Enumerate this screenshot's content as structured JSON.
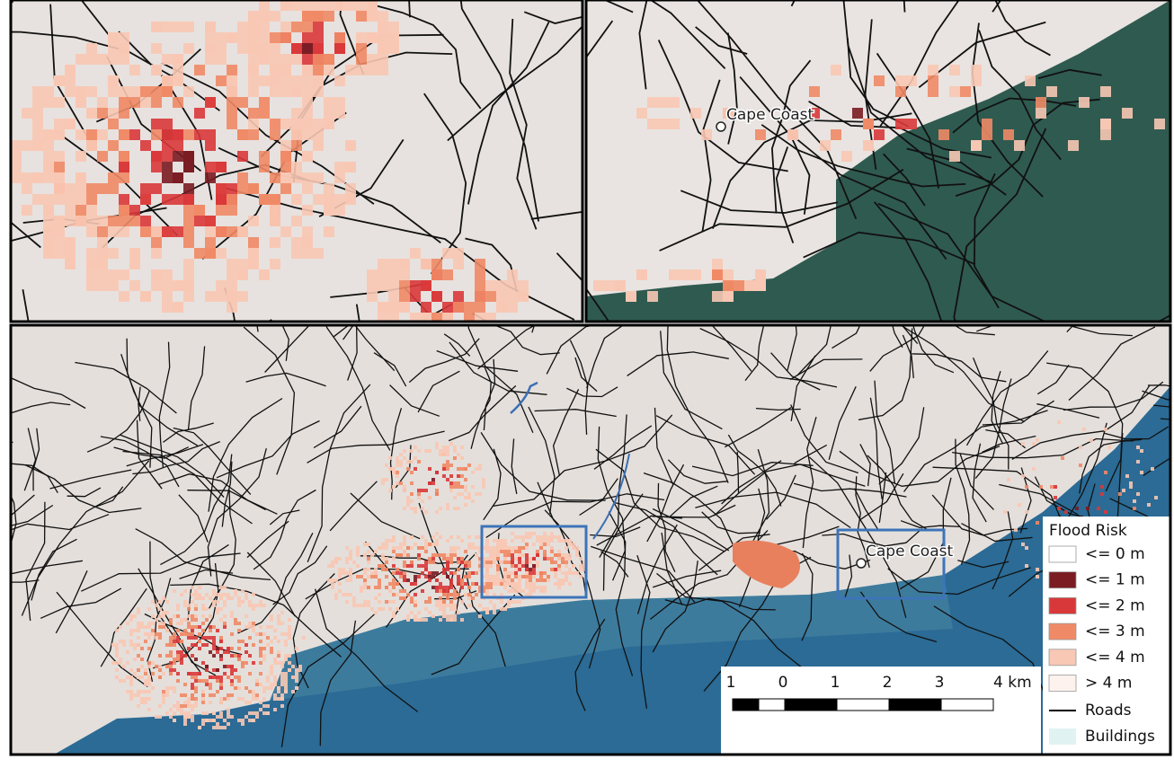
{
  "top_right_panel": {
    "place_label": "Cape Coast"
  },
  "overview_panel": {
    "place_label": "Cape Coast"
  },
  "legend": {
    "title": "Flood Risk",
    "items": [
      {
        "label": "<= 0 m",
        "color": "#ffffff"
      },
      {
        "label": "<= 1 m",
        "color": "#7a1c22"
      },
      {
        "label": "<= 2 m",
        "color": "#d9383a"
      },
      {
        "label": "<= 3 m",
        "color": "#f08a66"
      },
      {
        "label": "<= 4 m",
        "color": "#f8c8b4"
      },
      {
        "label": "> 4 m",
        "color": "#fdf2ee"
      }
    ],
    "roads_label": "Roads",
    "buildings_label": "Buildings"
  },
  "scale_bar": {
    "labels": [
      "1",
      "0",
      "1",
      "2",
      "3",
      "4 km"
    ]
  }
}
